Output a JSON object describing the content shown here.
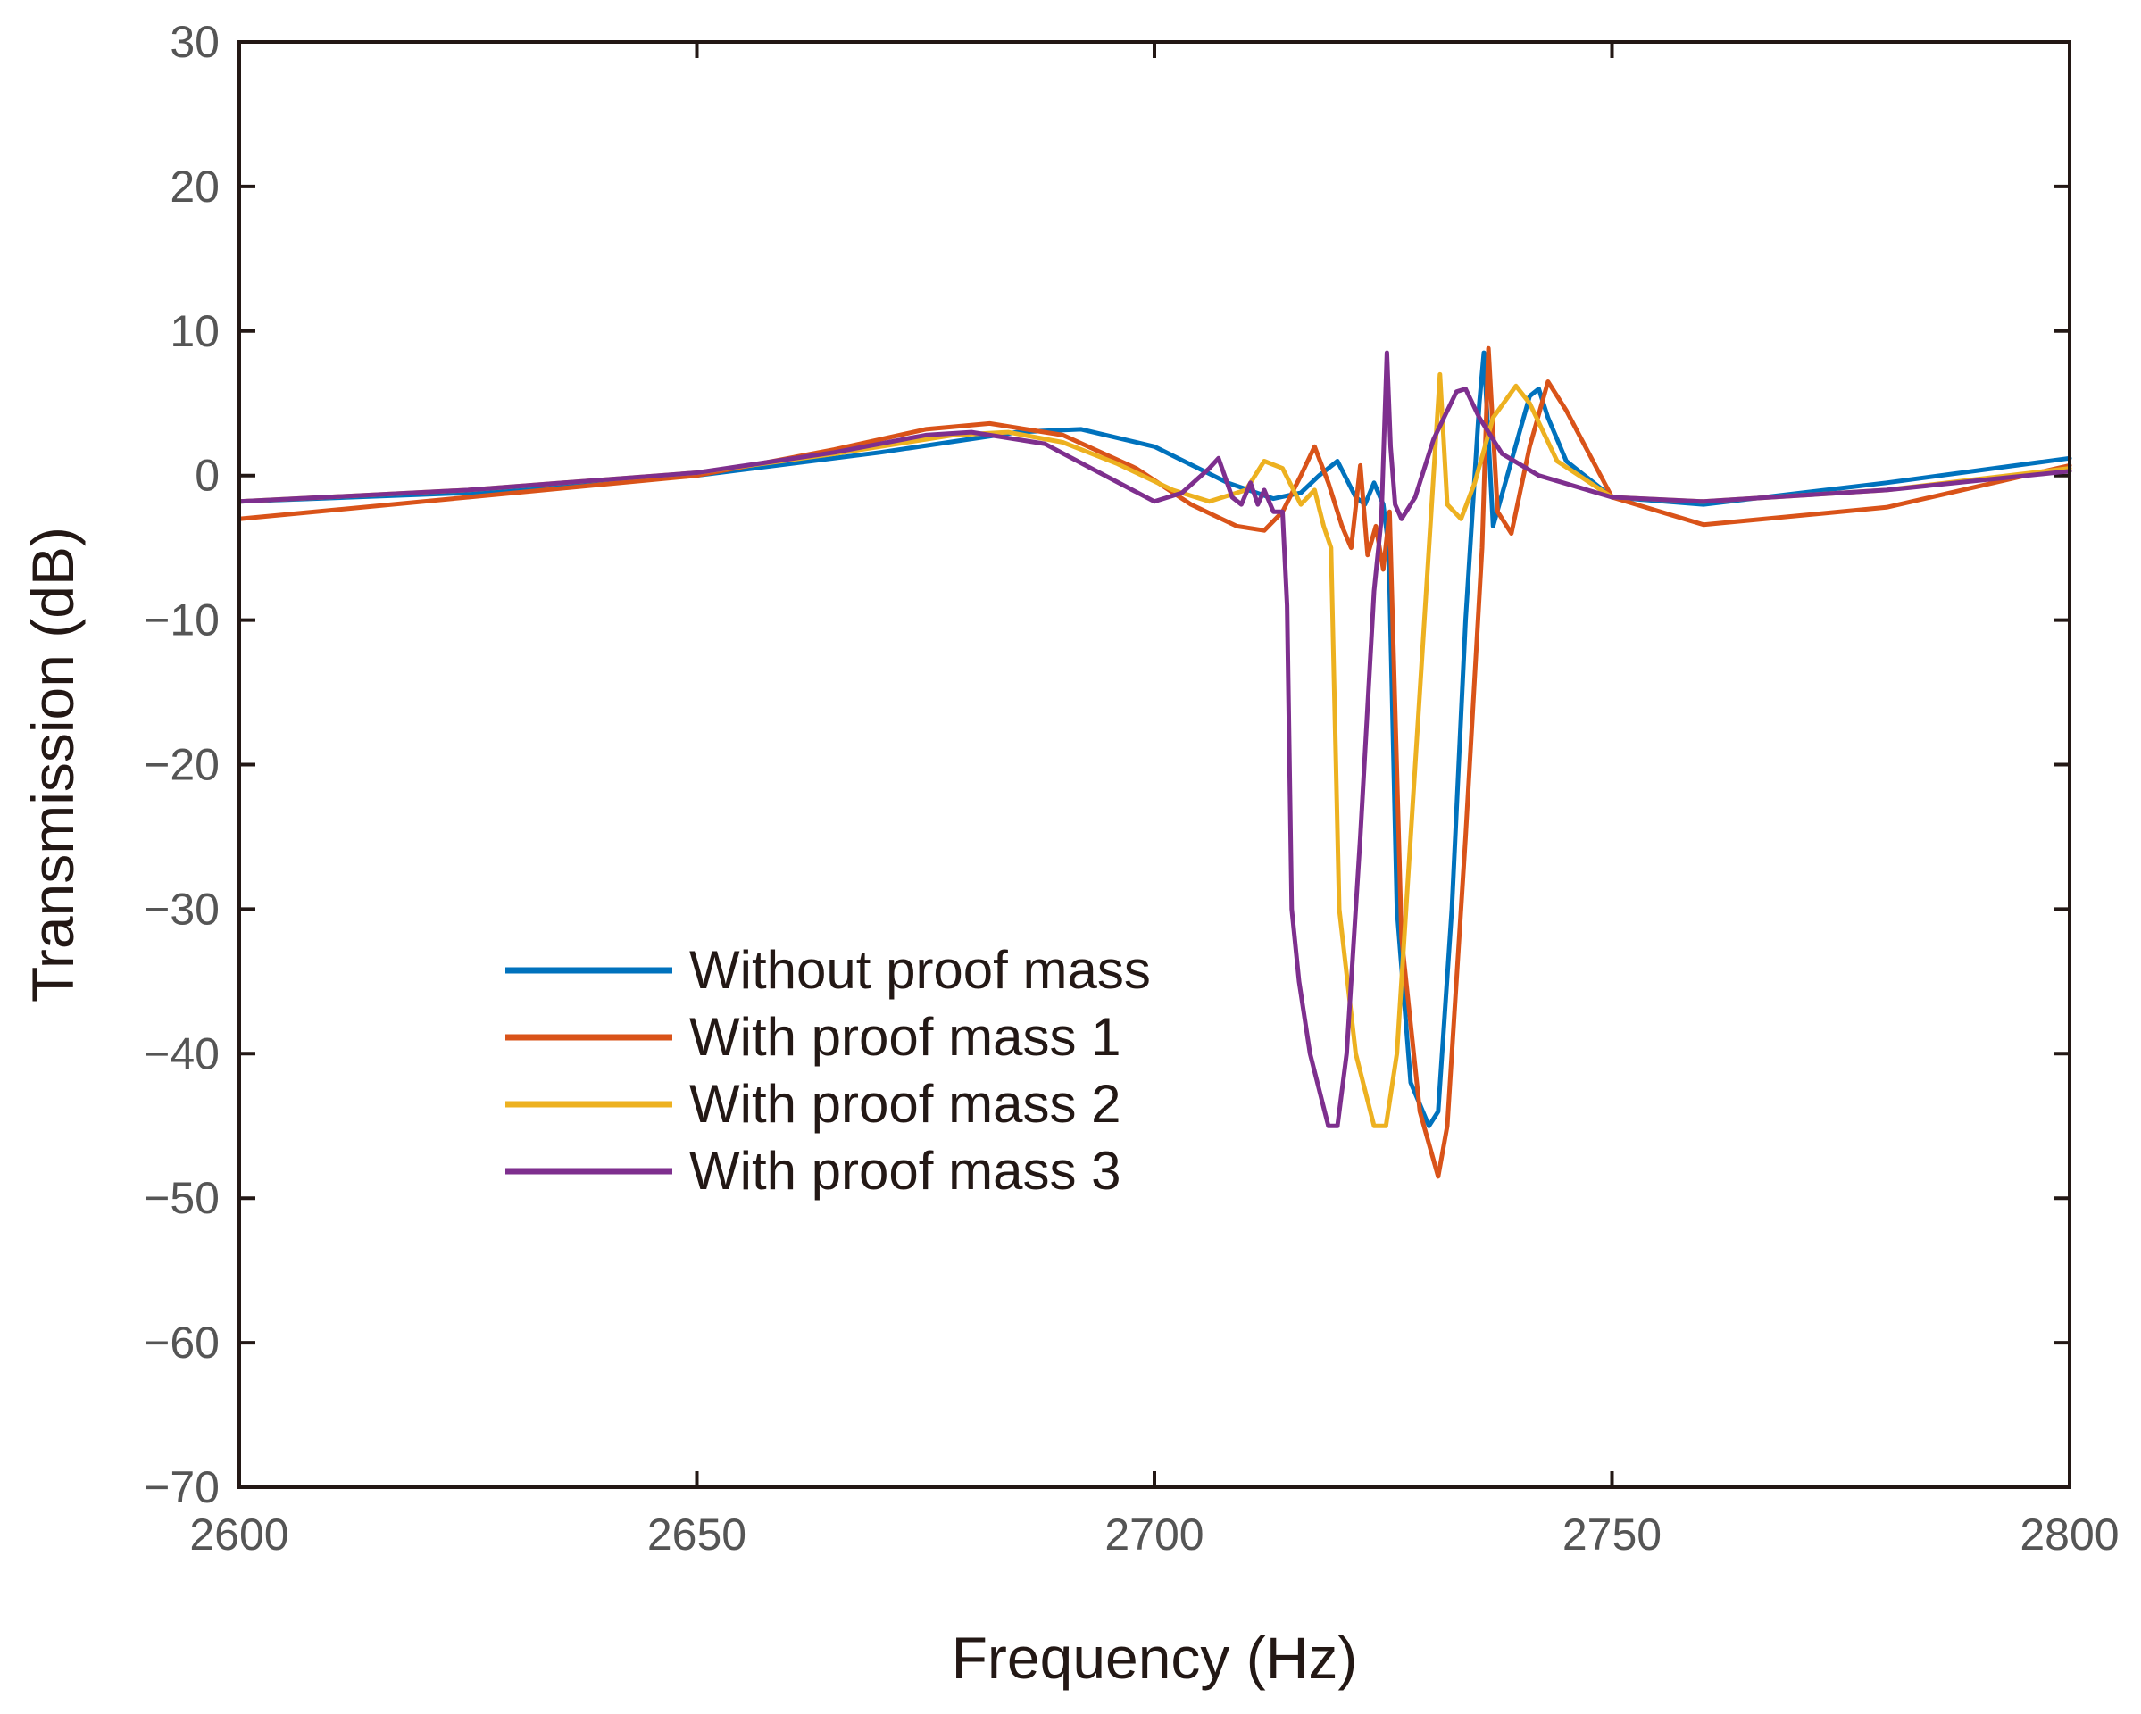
{
  "chart_data": {
    "type": "line",
    "title": "",
    "xlabel": "Frequency (Hz)",
    "ylabel": "Transmission (dB)",
    "xlim": [
      2600,
      2800
    ],
    "ylim": [
      -70,
      30
    ],
    "xticks": [
      2600,
      2650,
      2700,
      2750,
      2800
    ],
    "yticks": [
      30,
      20,
      10,
      0,
      -10,
      -20,
      -30,
      -40,
      -50,
      -60,
      -70
    ],
    "ytick_labels": [
      "30",
      "20",
      "10",
      "0",
      "−10",
      "−20",
      "−30",
      "−40",
      "−50",
      "−60",
      "−70"
    ],
    "xtick_labels": [
      "2600",
      "2650",
      "2700",
      "2750",
      "2800"
    ],
    "grid": false,
    "legend_position": "lower-left",
    "series": [
      {
        "name": "Without proof mass",
        "color": "#0072BD",
        "x": [
          2600,
          2625,
          2650,
          2670,
          2685,
          2692,
          2700,
          2708,
          2713,
          2716,
          2718,
          2720,
          2722,
          2723,
          2724,
          2725,
          2725.6,
          2726.5,
          2728,
          2730,
          2731,
          2732.5,
          2734,
          2735.5,
          2736,
          2737,
          2739,
          2741,
          2742,
          2743,
          2745,
          2750,
          2760,
          2780,
          2800
        ],
        "y": [
          -1.8,
          -1.2,
          0.0,
          1.6,
          3.0,
          3.2,
          2.0,
          -0.5,
          -1.6,
          -1.2,
          0.0,
          1.0,
          -1.5,
          -2.0,
          -0.5,
          -2.0,
          -5.0,
          -30,
          -42,
          -45,
          -44,
          -30,
          -10,
          5,
          8.5,
          -3.5,
          1.0,
          5.5,
          6.0,
          4.0,
          1.0,
          -1.5,
          -2.0,
          -0.5,
          1.2
        ]
      },
      {
        "name": "With proof mass 1",
        "color": "#D95319",
        "x": [
          2600,
          2625,
          2650,
          2665,
          2675,
          2682,
          2690,
          2698,
          2704,
          2709,
          2712,
          2714,
          2716,
          2717.5,
          2719,
          2720.5,
          2721.5,
          2722.5,
          2723.3,
          2724.2,
          2725,
          2725.7,
          2727,
          2729,
          2731,
          2732,
          2734,
          2735.8,
          2736.5,
          2737.5,
          2739,
          2741,
          2743,
          2745,
          2750,
          2760,
          2780,
          2800
        ],
        "y": [
          -3.0,
          -1.5,
          0.0,
          1.8,
          3.2,
          3.6,
          2.8,
          0.5,
          -2.0,
          -3.5,
          -3.8,
          -2.5,
          0.0,
          2.0,
          -0.5,
          -3.5,
          -5.0,
          0.7,
          -5.5,
          -3.5,
          -6.5,
          -2.5,
          -32,
          -44,
          -48.5,
          -45,
          -25,
          -5,
          8.8,
          -2.5,
          -4.0,
          2.0,
          6.5,
          4.5,
          -1.5,
          -3.4,
          -2.2,
          0.7
        ]
      },
      {
        "name": "With proof mass 2",
        "color": "#EDB120",
        "x": [
          2600,
          2625,
          2650,
          2665,
          2678,
          2684,
          2690,
          2696,
          2702,
          2706,
          2710,
          2712,
          2714,
          2716,
          2717.5,
          2718.5,
          2719.3,
          2720.2,
          2722,
          2724,
          2725.3,
          2726.5,
          2728,
          2730,
          2731.2,
          2732,
          2733.5,
          2735,
          2737,
          2739.5,
          2741,
          2744,
          2750,
          2760,
          2780,
          2800
        ],
        "y": [
          -1.8,
          -1.0,
          0.2,
          1.5,
          2.8,
          3.0,
          2.3,
          0.8,
          -1.0,
          -1.8,
          -1.0,
          1.0,
          0.5,
          -2.0,
          -1.0,
          -3.5,
          -5.0,
          -30,
          -40,
          -45,
          -45,
          -40,
          -25,
          -5,
          7.0,
          -2.0,
          -3.0,
          -0.5,
          4.0,
          6.2,
          5.0,
          1.0,
          -1.5,
          -1.8,
          -1.0,
          0.5
        ]
      },
      {
        "name": "With proof mass 3",
        "color": "#7E2F8E",
        "x": [
          2600,
          2625,
          2650,
          2665,
          2675,
          2680,
          2688,
          2694,
          2700,
          2703,
          2706,
          2707,
          2708.5,
          2709.5,
          2710.5,
          2711.3,
          2712,
          2713,
          2714,
          2714.5,
          2715,
          2715.8,
          2717,
          2719,
          2720,
          2721,
          2722.5,
          2724,
          2724.8,
          2725.4,
          2725.8,
          2726.3,
          2727,
          2728.5,
          2730.5,
          2733,
          2734,
          2735.5,
          2738,
          2742,
          2750,
          2760,
          2780,
          2800
        ],
        "y": [
          -1.8,
          -1.0,
          0.2,
          1.6,
          2.8,
          3.0,
          2.2,
          0.2,
          -1.8,
          -1.2,
          0.5,
          1.2,
          -1.5,
          -2.0,
          -0.5,
          -2.0,
          -1.0,
          -2.5,
          -2.5,
          -9,
          -30,
          -35,
          -40,
          -45,
          -45,
          -40,
          -25,
          -8,
          -3.0,
          8.5,
          2.0,
          -2.0,
          -3.0,
          -1.5,
          2.5,
          5.8,
          6.0,
          4.0,
          1.5,
          0.0,
          -1.5,
          -1.8,
          -1.0,
          0.3
        ]
      }
    ]
  }
}
